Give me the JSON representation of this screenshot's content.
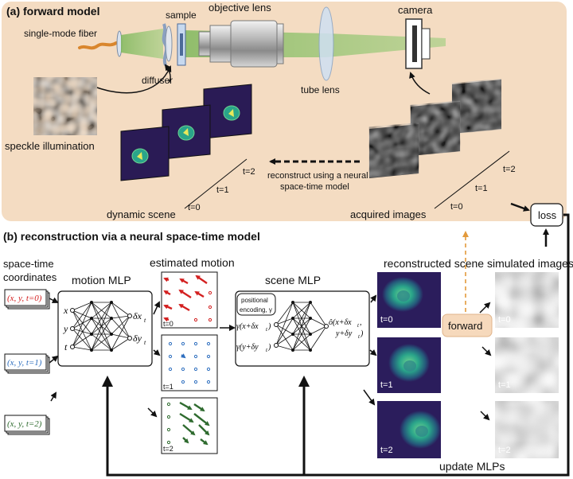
{
  "panel_a": {
    "title": "(a) forward model",
    "labels": {
      "fiber": "single-mode fiber",
      "sample": "sample",
      "objective": "objective lens",
      "camera": "camera",
      "diffuser": "diffuser",
      "tube_lens": "tube lens",
      "speckle": "speckle illumination",
      "reconstruct_line1": "reconstruct using a neural",
      "reconstruct_line2": "space-time model",
      "dynamic_scene": "dynamic scene",
      "acquired_images": "acquired images"
    },
    "time_labels": [
      "t=0",
      "t=1",
      "t=2"
    ]
  },
  "panel_b": {
    "title": "(b) reconstruction via a neural space-time model",
    "coords_title_line1": "space-time",
    "coords_title_line2": "coordinates",
    "coords": [
      "(x, y, t=0)",
      "(x, y, t=1)",
      "(x, y, t=2)"
    ],
    "coord_colors": [
      "#d32020",
      "#2f6fbf",
      "#2f6b2f"
    ],
    "motion_mlp": {
      "title": "motion MLP",
      "inputs": [
        "x",
        "y",
        "t"
      ],
      "outputs": [
        "δx",
        "δy"
      ],
      "output_subscript": "t"
    },
    "estimated_motion": {
      "title": "estimated motion",
      "frames": [
        "t=0",
        "t=1",
        "t=2"
      ]
    },
    "scene_mlp": {
      "title": "scene MLP",
      "encoding_line1": "positional",
      "encoding_line2": "encoding, γ",
      "inputs": [
        "γ(x+δx",
        "γ(y+δy"
      ],
      "input_subscript": "t",
      "output_line1": "ô(x+δx",
      "output_line2": "y+δy",
      "output_subscript": "t"
    },
    "reconstructed_scene": {
      "title": "reconstructed scene",
      "frames": [
        "t=0",
        "t=1",
        "t=2"
      ]
    },
    "forward": "forward",
    "simulated_images": {
      "title": "simulated images",
      "frames": [
        "t=0",
        "t=1",
        "t=2"
      ]
    },
    "loss": "loss",
    "update": "update MLPs"
  },
  "colors": {
    "panel_a_background": "#f4dcc2",
    "forward_box": "#f6d9bc",
    "dynamic_scene_bg": "#2a1b55",
    "recon_bg": "#2b1d5c",
    "motion_red": "#d32020",
    "motion_blue": "#2f6fbf",
    "motion_green": "#2f6b2f",
    "dashed_arrow": "#e39a3b",
    "beam_green": "#8fbf6a"
  }
}
